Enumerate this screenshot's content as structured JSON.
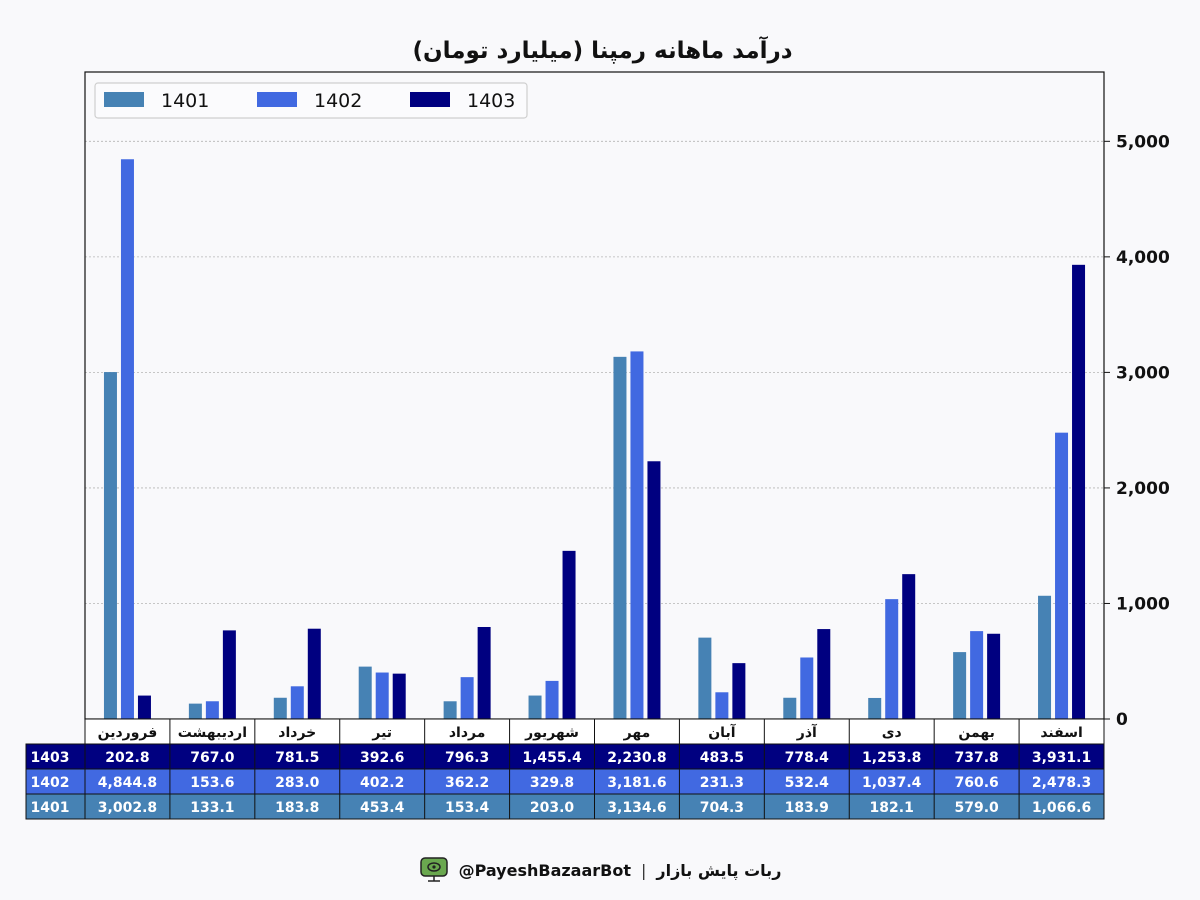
{
  "chart_data": {
    "type": "bar",
    "title": "درآمد ماهانه رمپنا (میلیارد تومان)",
    "categories": [
      "فروردین",
      "اردیبهشت",
      "خرداد",
      "تیر",
      "مرداد",
      "شهریور",
      "مهر",
      "آبان",
      "آذر",
      "دی",
      "بهمن",
      "اسفند"
    ],
    "series": [
      {
        "name": "1401",
        "color": "#4682b4",
        "values": [
          3002.8,
          133.1,
          183.8,
          453.4,
          153.4,
          203.0,
          3134.6,
          704.3,
          183.9,
          182.1,
          579.0,
          1066.6
        ],
        "labels": [
          "3,002.8",
          "133.1",
          "183.8",
          "453.4",
          "153.4",
          "203.0",
          "3,134.6",
          "704.3",
          "183.9",
          "182.1",
          "579.0",
          "1,066.6"
        ]
      },
      {
        "name": "1402",
        "color": "#4169e1",
        "values": [
          4844.8,
          153.6,
          283.0,
          402.2,
          362.2,
          329.8,
          3181.6,
          231.3,
          532.4,
          1037.4,
          760.6,
          2478.3
        ],
        "labels": [
          "4,844.8",
          "153.6",
          "283.0",
          "402.2",
          "362.2",
          "329.8",
          "3,181.6",
          "231.3",
          "532.4",
          "1,037.4",
          "760.6",
          "2,478.3"
        ]
      },
      {
        "name": "1403",
        "color": "#000080",
        "values": [
          202.8,
          767.0,
          781.5,
          392.6,
          796.3,
          1455.4,
          2230.8,
          483.5,
          778.4,
          1253.8,
          737.8,
          3931.1
        ],
        "labels": [
          "202.8",
          "767.0",
          "781.5",
          "392.6",
          "796.3",
          "1,455.4",
          "2,230.8",
          "483.5",
          "778.4",
          "1,253.8",
          "737.8",
          "3,931.1"
        ]
      }
    ],
    "table_row_order": [
      "1403",
      "1402",
      "1401"
    ],
    "yticks": [
      0,
      1000,
      2000,
      3000,
      4000,
      5000
    ],
    "ytick_labels": [
      "0",
      "1,000",
      "2,000",
      "3,000",
      "4,000",
      "5,000"
    ],
    "ylim": [
      0,
      5600
    ],
    "y_axis_side": "right",
    "grid": true,
    "legend_position": "top-left"
  },
  "footer": {
    "bot_handle": "@PayeshBazaarBot",
    "separator": "|",
    "bot_name": "ربات پایش بازار"
  }
}
